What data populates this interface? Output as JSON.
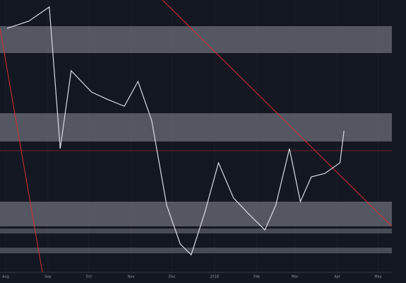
{
  "chart_data": {
    "type": "line",
    "x": [
      1,
      17,
      32,
      40,
      48,
      63,
      74,
      87,
      97,
      107,
      118,
      128,
      136,
      146,
      156,
      167,
      177,
      190,
      198,
      208,
      216,
      224,
      234,
      245,
      248
    ],
    "series": [
      {
        "color": "#d8dbe3",
        "values": [
          91.5,
          94.2,
          99.5,
          46.4,
          75.6,
          67.6,
          65,
          62.3,
          71.6,
          57,
          25.2,
          10.6,
          6.6,
          22.5,
          41.1,
          27.9,
          22.5,
          15.9,
          25.2,
          46.4,
          26.5,
          35.8,
          37.1,
          41.1,
          53.1
        ]
      }
    ],
    "xlim": [
      0,
      281
    ],
    "xticks": [
      {
        "value": 0,
        "label": "Aug"
      },
      {
        "value": 31,
        "label": "Sep"
      },
      {
        "value": 61,
        "label": "Oct"
      },
      {
        "value": 92,
        "label": "Nov"
      },
      {
        "value": 122,
        "label": "Dec"
      },
      {
        "value": 153,
        "label": "2018"
      },
      {
        "value": 184,
        "label": "Feb"
      },
      {
        "value": 212,
        "label": "Mar"
      },
      {
        "value": 243,
        "label": "Apr"
      },
      {
        "value": 273,
        "label": "May"
      }
    ],
    "ylim": [
      0,
      100
    ],
    "grid": true
  }
}
